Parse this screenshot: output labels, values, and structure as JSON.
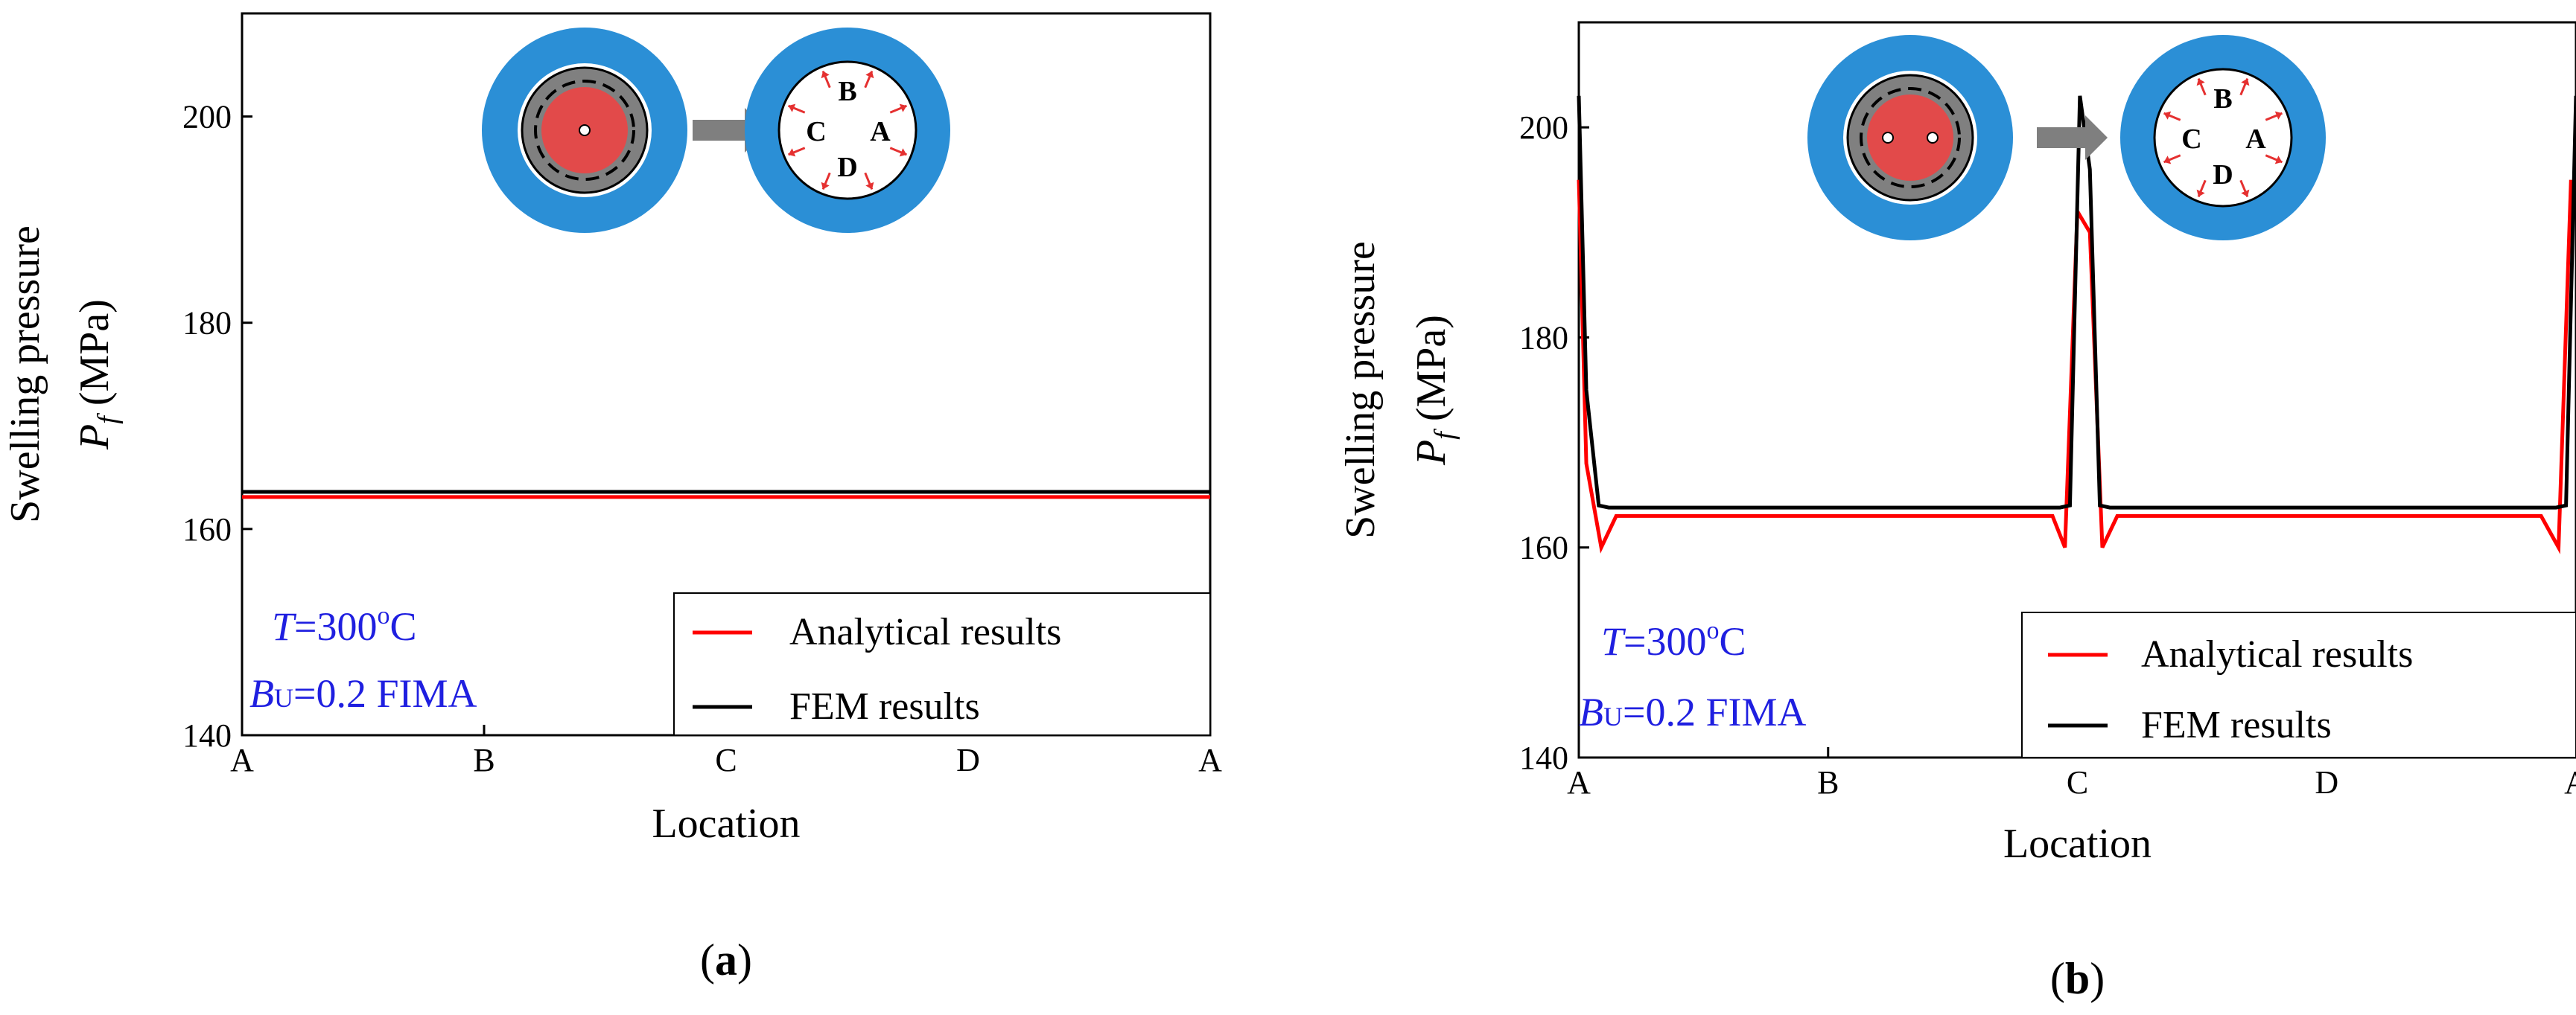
{
  "chart_data": [
    {
      "type": "line",
      "panel_label": "a",
      "x_categories": [
        "A",
        "B",
        "C",
        "D",
        "A"
      ],
      "xlabel": "Location",
      "ylabel_line1": "Swelling pressure",
      "ylabel_symbol": "P",
      "ylabel_subscript": "f",
      "ylabel_unit": " (MPa)",
      "ylim": [
        140,
        210
      ],
      "y_ticks": [
        140,
        160,
        180,
        200
      ],
      "grid": false,
      "legend_position": "bottom-right",
      "annotation": {
        "T_symbol": "T",
        "T_text": "=300",
        "T_sup": "o",
        "T_unit": "C",
        "B_symbol": "B",
        "B_sub": "U",
        "B_text": "=0.2 FIMA"
      },
      "diagram_labels": {
        "a": "A",
        "b": "B",
        "c": "C",
        "d": "D"
      },
      "series": [
        {
          "name": "Analytical results",
          "color": "#ff0000",
          "x": [
            0,
            4
          ],
          "y": [
            163.1,
            163.1
          ]
        },
        {
          "name": "FEM results",
          "color": "#000000",
          "x": [
            0,
            4
          ],
          "y": [
            163.6,
            163.6
          ]
        }
      ]
    },
    {
      "type": "line",
      "panel_label": "b",
      "x_categories": [
        "A",
        "B",
        "C",
        "D",
        "A"
      ],
      "xlabel": "Location",
      "ylabel_line1": "Swelling pressure",
      "ylabel_symbol": "P",
      "ylabel_subscript": "f",
      "ylabel_unit": " (MPa)",
      "ylim": [
        140,
        210
      ],
      "y_ticks": [
        140,
        160,
        180,
        200
      ],
      "grid": false,
      "legend_position": "bottom-right",
      "annotation": {
        "T_symbol": "T",
        "T_text": "=300",
        "T_sup": "o",
        "T_unit": "C",
        "B_symbol": "B",
        "B_sub": "U",
        "B_text": "=0.2 FIMA"
      },
      "diagram_labels": {
        "a": "A",
        "b": "B",
        "c": "C",
        "d": "D"
      },
      "series": [
        {
          "name": "Analytical results",
          "color": "#ff0000",
          "x": [
            0,
            0.03,
            0.09,
            0.15,
            1.9,
            1.95,
            2.0,
            2.05,
            2.1,
            2.16,
            3.8,
            3.86,
            3.93,
            3.98
          ],
          "y": [
            195,
            168,
            160,
            163,
            163,
            160,
            192,
            190,
            160,
            163,
            163,
            163,
            160,
            195
          ]
        },
        {
          "name": "FEM results",
          "color": "#000000",
          "x": [
            0,
            0.03,
            0.08,
            0.12,
            1.93,
            1.97,
            2.01,
            2.05,
            2.09,
            2.13,
            3.86,
            3.92,
            3.96,
            4.0
          ],
          "y": [
            203,
            175,
            164,
            163.8,
            163.8,
            164,
            203,
            196,
            164,
            163.8,
            163.8,
            163.8,
            164,
            203
          ]
        }
      ]
    }
  ]
}
